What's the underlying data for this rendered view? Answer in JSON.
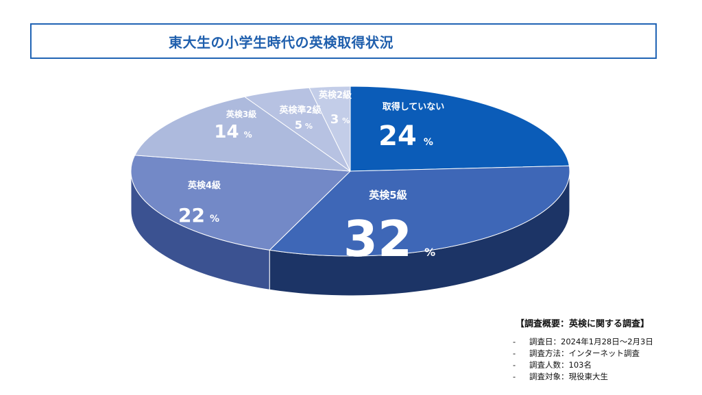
{
  "title": "東大生の小学生時代の英検取得状況",
  "chart_data": {
    "type": "pie",
    "title": "東大生の小学生時代の英検取得状況",
    "unit": "%",
    "slices": [
      {
        "label": "取得していない",
        "value": 24,
        "color": "#0b5cb8",
        "side_color": "#0a3e80"
      },
      {
        "label": "英検5級",
        "value": 32,
        "color": "#3e67b7",
        "side_color": "#1c3466"
      },
      {
        "label": "英検4級",
        "value": 22,
        "color": "#7389c7",
        "side_color": "#3b5291"
      },
      {
        "label": "英検3級",
        "value": 14,
        "color": "#adbadd",
        "side_color": "#7182b0"
      },
      {
        "label": "英検準2級",
        "value": 5,
        "color": "#b7c2e2",
        "side_color": "#8090b8"
      },
      {
        "label": "英検2級",
        "value": 3,
        "color": "#c3cde8",
        "side_color": "#8d9bc0"
      }
    ]
  },
  "survey": {
    "heading": "【調査概要：英検に関する調査】",
    "items": [
      {
        "dash": "-",
        "text": "調査日：2024年1月28日～2月3日"
      },
      {
        "dash": "-",
        "text": "調査方法：インターネット調査"
      },
      {
        "dash": "-",
        "text": "調査人数：103名"
      },
      {
        "dash": "-",
        "text": "調査対象：現役東大生"
      }
    ]
  }
}
